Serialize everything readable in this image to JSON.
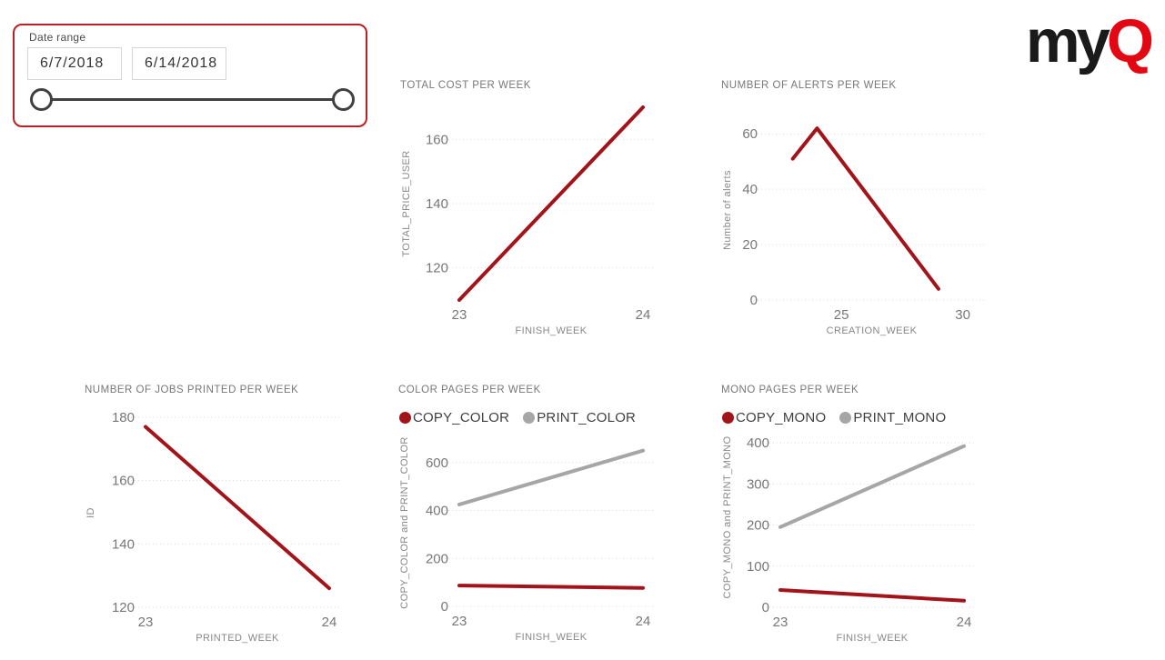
{
  "slicer": {
    "label": "Date range",
    "start_date": "6/7/2018",
    "end_date": "6/14/2018"
  },
  "logo": {
    "text_black": "my",
    "text_red": "Q"
  },
  "colors": {
    "series_red": "#a2131a",
    "series_gray": "#a6a6a6",
    "logo_red": "#e30613",
    "logo_black": "#1a1a1a",
    "slicer_border": "#ba2025",
    "grid": "#d9d9d9",
    "tick_text": "#777777"
  },
  "chart_data": [
    {
      "type": "line",
      "title": "TOTAL COST PER WEEK",
      "xlabel": "FINISH_WEEK",
      "ylabel": "TOTAL_PRICE_USER",
      "xlim": [
        23,
        24
      ],
      "ylim": [
        110,
        170
      ],
      "xticks": [
        23,
        24
      ],
      "yticks": [
        120,
        140,
        160
      ],
      "grid": true,
      "legend": false,
      "series": [
        {
          "name": "TOTAL_PRICE_USER",
          "color": "#a2131a",
          "x": [
            23,
            24
          ],
          "y": [
            110,
            170
          ]
        }
      ]
    },
    {
      "type": "line",
      "title": "NUMBER OF ALERTS PER WEEK",
      "xlabel": "CREATION_WEEK",
      "ylabel": "Number of alerts",
      "xlim": [
        22,
        30.5
      ],
      "ylim": [
        0,
        65
      ],
      "xticks": [
        25,
        30
      ],
      "yticks": [
        0,
        20,
        40,
        60
      ],
      "grid": true,
      "legend": false,
      "series": [
        {
          "name": "Number of alerts",
          "color": "#a2131a",
          "x": [
            23,
            24,
            29
          ],
          "y": [
            51,
            62,
            4
          ]
        }
      ]
    },
    {
      "type": "line",
      "title": "NUMBER OF JOBS PRINTED PER WEEK",
      "xlabel": "PRINTED_WEEK",
      "ylabel": "ID",
      "xlim": [
        23,
        24
      ],
      "ylim": [
        120,
        180
      ],
      "xticks": [
        23,
        24
      ],
      "yticks": [
        120,
        140,
        160,
        180
      ],
      "grid": true,
      "legend": false,
      "series": [
        {
          "name": "ID",
          "color": "#a2131a",
          "x": [
            23,
            24
          ],
          "y": [
            177,
            126
          ]
        }
      ]
    },
    {
      "type": "line",
      "title": "COLOR PAGES PER WEEK",
      "xlabel": "FINISH_WEEK",
      "ylabel": "COPY_COLOR and PRINT_COLOR",
      "xlim": [
        23,
        24
      ],
      "ylim": [
        0,
        698
      ],
      "xticks": [
        23,
        24
      ],
      "yticks": [
        0,
        200,
        400,
        600
      ],
      "grid": true,
      "legend": true,
      "legend_position": "top",
      "series": [
        {
          "name": "COPY_COLOR",
          "color": "#a2131a",
          "x": [
            23,
            24
          ],
          "y": [
            87,
            77
          ]
        },
        {
          "name": "PRINT_COLOR",
          "color": "#a6a6a6",
          "x": [
            23,
            24
          ],
          "y": [
            425,
            650
          ]
        }
      ]
    },
    {
      "type": "line",
      "title": "MONO PAGES PER WEEK",
      "xlabel": "FINISH_WEEK",
      "ylabel": "COPY_MONO and PRINT_MONO",
      "xlim": [
        23,
        24
      ],
      "ylim": [
        0,
        440
      ],
      "xticks": [
        23,
        24
      ],
      "yticks": [
        0,
        100,
        200,
        300,
        400
      ],
      "grid": true,
      "legend": true,
      "legend_position": "top",
      "series": [
        {
          "name": "COPY_MONO",
          "color": "#a2131a",
          "x": [
            23,
            24
          ],
          "y": [
            42,
            16
          ]
        },
        {
          "name": "PRINT_MONO",
          "color": "#a6a6a6",
          "x": [
            23,
            24
          ],
          "y": [
            195,
            392
          ]
        }
      ]
    }
  ]
}
